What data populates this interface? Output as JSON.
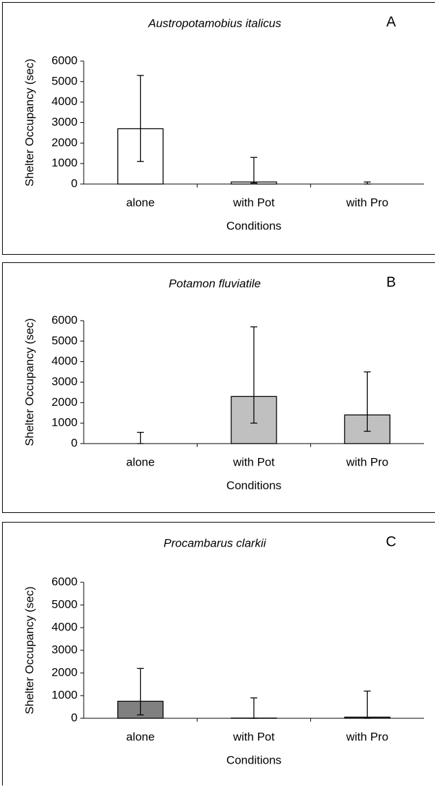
{
  "chart_data": [
    {
      "type": "bar",
      "title": "Austropotamobius italicus",
      "label": "A",
      "x_label": "Conditions",
      "y_label": "Shelter Occupancy (sec)",
      "categories": [
        "alone",
        "with Pot",
        "with Pro"
      ],
      "values": [
        2700,
        100,
        0
      ],
      "error_high": [
        5300,
        1300,
        100
      ],
      "error_low": [
        1100,
        50,
        0
      ],
      "color": "#ffffff",
      "ylim": [
        0,
        6000
      ],
      "yticks": [
        0,
        1000,
        2000,
        3000,
        4000,
        5000,
        6000
      ]
    },
    {
      "type": "bar",
      "title": "Potamon fluviatile",
      "label": "B",
      "x_label": "Conditions",
      "y_label": "Shelter Occupancy (sec)",
      "categories": [
        "alone",
        "with Pot",
        "with Pro"
      ],
      "values": [
        0,
        2300,
        1400
      ],
      "error_high": [
        550,
        5700,
        3500
      ],
      "error_low": [
        0,
        1000,
        600
      ],
      "color": "#c0c0c0",
      "ylim": [
        0,
        6000
      ],
      "yticks": [
        0,
        1000,
        2000,
        3000,
        4000,
        5000,
        6000
      ]
    },
    {
      "type": "bar",
      "title": "Procambarus clarkii",
      "label": "C",
      "x_label": "Conditions",
      "y_label": "Shelter Occupancy (sec)",
      "categories": [
        "alone",
        "with Pot",
        "with Pro"
      ],
      "values": [
        750,
        10,
        50
      ],
      "error_high": [
        2200,
        900,
        1200
      ],
      "error_low": [
        150,
        0,
        0
      ],
      "color": "#808080",
      "ylim": [
        0,
        6000
      ],
      "yticks": [
        0,
        1000,
        2000,
        3000,
        4000,
        5000,
        6000
      ]
    }
  ]
}
